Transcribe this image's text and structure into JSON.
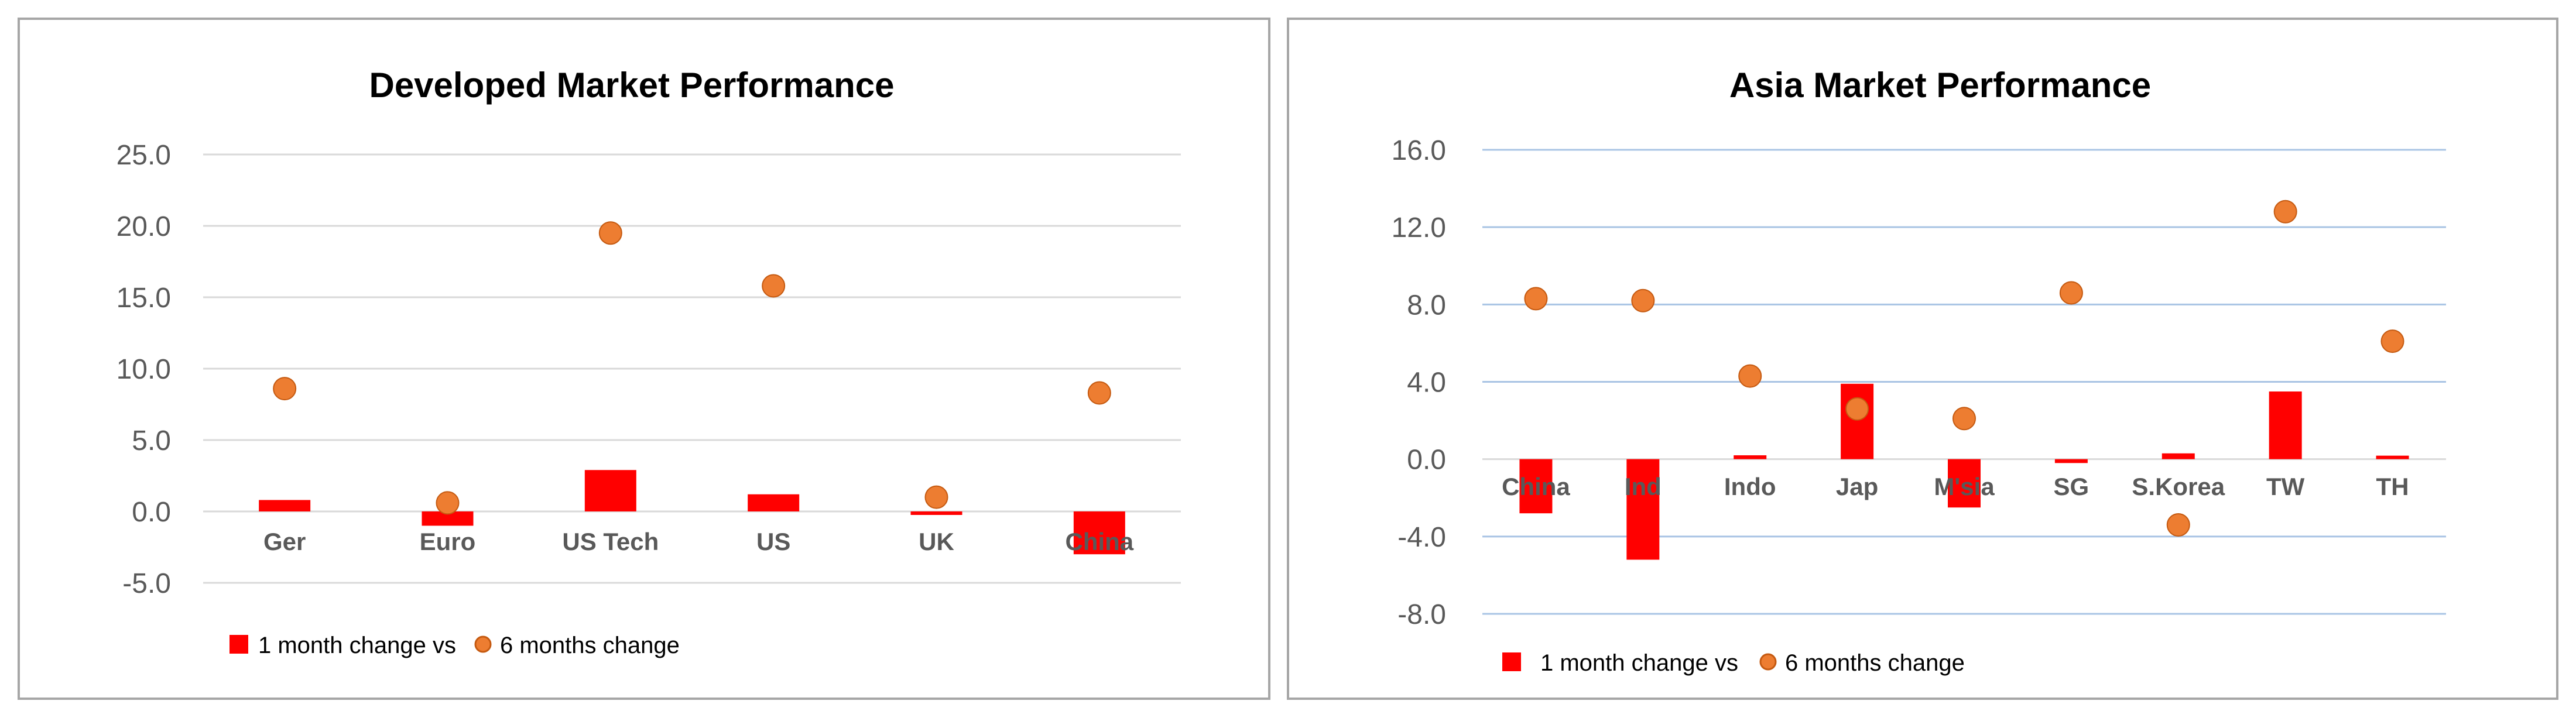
{
  "colors": {
    "bar": "#ff0000",
    "point": "#ed7d31",
    "point_stroke": "#c55a11",
    "grid_left": "#d9d9d9",
    "grid_right": "#a9c4e4",
    "zero_line_right": "#d9d9d9"
  },
  "chart_data": [
    {
      "type": "bar",
      "title": "Developed Market Performance",
      "xlabel": "",
      "ylabel": "",
      "categories": [
        "Ger",
        "Euro",
        "US Tech",
        "US",
        "UK",
        "China"
      ],
      "series": [
        {
          "name": "1 month change vs",
          "type": "bar",
          "values": [
            0.8,
            -1.0,
            2.9,
            1.2,
            -0.2,
            -3.0
          ]
        },
        {
          "name": "6 months change",
          "type": "scatter",
          "values": [
            8.6,
            0.6,
            19.5,
            15.8,
            1.0,
            8.3
          ]
        }
      ],
      "ylim": [
        -5.0,
        25.0
      ],
      "yticks": [
        "25.0",
        "20.0",
        "15.0",
        "10.0",
        "5.0",
        "0.0",
        "-5.0"
      ],
      "grid": true,
      "legend": "bottom-left"
    },
    {
      "type": "bar",
      "title": "Asia Market Performance",
      "xlabel": "",
      "ylabel": "",
      "categories": [
        "China",
        "Ind",
        "Indo",
        "Jap",
        "M'sia",
        "SG",
        "S.Korea",
        "TW",
        "TH"
      ],
      "series": [
        {
          "name": "1 month change vs",
          "type": "bar",
          "values": [
            -2.8,
            -5.2,
            0.2,
            3.9,
            -2.5,
            -0.2,
            0.3,
            3.5,
            0.1
          ]
        },
        {
          "name": "6 months change",
          "type": "scatter",
          "values": [
            8.3,
            8.2,
            4.3,
            2.6,
            2.1,
            8.6,
            -3.4,
            12.8,
            6.1
          ]
        }
      ],
      "ylim": [
        -8.0,
        16.0
      ],
      "yticks": [
        "16.0",
        "12.0",
        "8.0",
        "4.0",
        "0.0",
        "-4.0",
        "-8.0"
      ],
      "grid": true,
      "legend": "bottom-left"
    }
  ]
}
